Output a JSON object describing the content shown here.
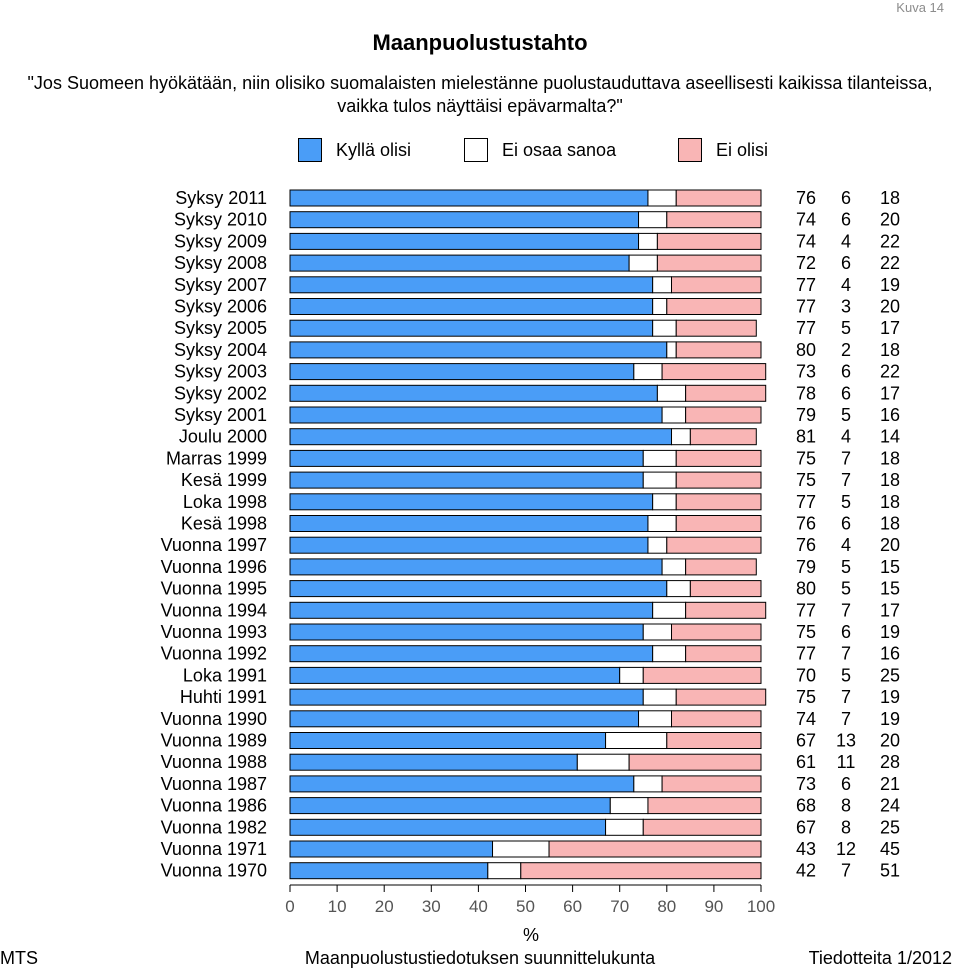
{
  "page_number": "Kuva 14",
  "footer": {
    "left": "MTS",
    "center": "Maanpuolustustiedotuksen suunnittelukunta",
    "right": "Tiedotteita 1/2012"
  },
  "colors": {
    "yes": "#4a9df7",
    "unsure": "#ffffff",
    "no": "#f9b5b5"
  },
  "chart_data": {
    "type": "bar",
    "orientation": "horizontal",
    "stacked": true,
    "title": "Maanpuolustustahto",
    "subtitle": "\"Jos Suomeen hyökätään, niin olisiko suomalaisten mielestänne puolustauduttava aseellisesti kaikissa tilanteissa, vaikka tulos näyttäisi epävarmalta?\"",
    "xlabel": "%",
    "xlim": [
      0,
      100
    ],
    "xticks": [
      0,
      10,
      20,
      30,
      40,
      50,
      60,
      70,
      80,
      90,
      100
    ],
    "grid": false,
    "legend_position": "top",
    "categories": [
      "Syksy 2011",
      "Syksy 2010",
      "Syksy 2009",
      "Syksy 2008",
      "Syksy 2007",
      "Syksy 2006",
      "Syksy 2005",
      "Syksy 2004",
      "Syksy 2003",
      "Syksy 2002",
      "Syksy 2001",
      "Joulu 2000",
      "Marras 1999",
      "Kesä 1999",
      "Loka 1998",
      "Kesä 1998",
      "Vuonna 1997",
      "Vuonna 1996",
      "Vuonna 1995",
      "Vuonna 1994",
      "Vuonna 1993",
      "Vuonna 1992",
      "Loka 1991",
      "Huhti 1991",
      "Vuonna 1990",
      "Vuonna 1989",
      "Vuonna 1988",
      "Vuonna 1987",
      "Vuonna 1986",
      "Vuonna 1982",
      "Vuonna 1971",
      "Vuonna 1970"
    ],
    "series": [
      {
        "name": "Kyllä olisi",
        "values": [
          76,
          74,
          74,
          72,
          77,
          77,
          77,
          80,
          73,
          78,
          79,
          81,
          75,
          75,
          77,
          76,
          76,
          79,
          80,
          77,
          75,
          77,
          70,
          75,
          74,
          67,
          61,
          73,
          68,
          67,
          43,
          42
        ]
      },
      {
        "name": "Ei osaa sanoa",
        "values": [
          6,
          6,
          4,
          6,
          4,
          3,
          5,
          2,
          6,
          6,
          5,
          4,
          7,
          7,
          5,
          6,
          4,
          5,
          5,
          7,
          6,
          7,
          5,
          7,
          7,
          13,
          11,
          6,
          8,
          8,
          12,
          7
        ]
      },
      {
        "name": "Ei olisi",
        "values": [
          18,
          20,
          22,
          22,
          19,
          20,
          17,
          18,
          22,
          17,
          16,
          14,
          18,
          18,
          18,
          18,
          20,
          15,
          15,
          17,
          19,
          16,
          25,
          19,
          19,
          20,
          28,
          21,
          24,
          25,
          45,
          51
        ]
      }
    ]
  }
}
